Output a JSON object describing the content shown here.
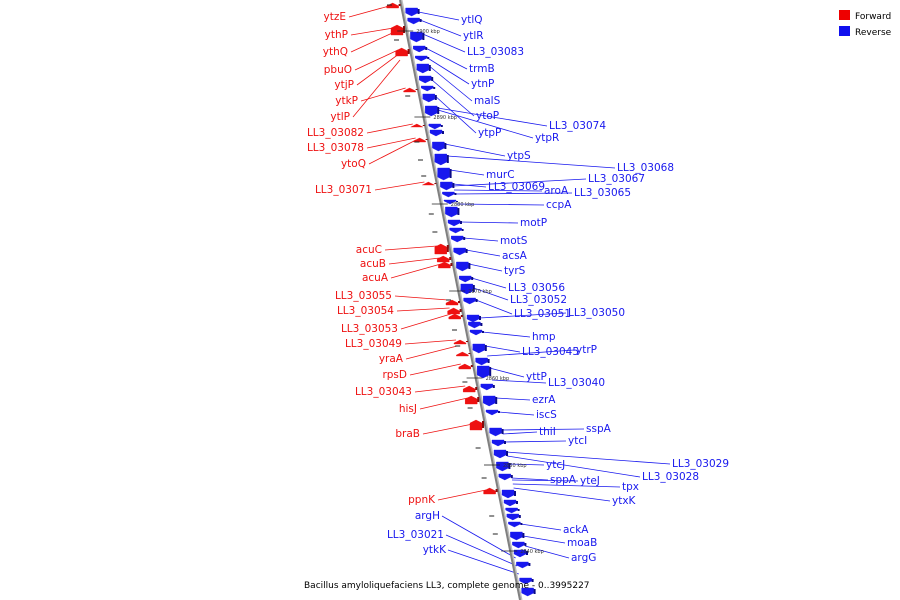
{
  "caption": "Bacillus amyloliquefaciens LL3, complete genome - 0..3995227",
  "legend": [
    {
      "label": "Forward",
      "color": "#ee0000"
    },
    {
      "label": "Reverse",
      "color": "#1010ee"
    }
  ],
  "colors": {
    "forward": "#ee1111",
    "reverse": "#1818ee",
    "axis": "#808080"
  },
  "ticks": [
    "2900 kbp",
    "2890 kbp",
    "2880 kbp",
    "2870 kbp",
    "2860 kbp",
    "2850 kbp",
    "2840 kbp"
  ],
  "genes_forward": [
    "ytzE",
    "ythP",
    "ythQ",
    "pbuO",
    "ytjP",
    "ytkP",
    "ytlP",
    "LL3_03082",
    "LL3_03078",
    "ytoQ",
    "LL3_03071",
    "acuC",
    "acuB",
    "acuA",
    "LL3_03055",
    "LL3_03054",
    "LL3_03053",
    "LL3_03049",
    "yraA",
    "rpsD",
    "LL3_03043",
    "hisJ",
    "braB",
    "ppnK"
  ],
  "genes_reverse": [
    "ytlQ",
    "ytlR",
    "LL3_03083",
    "trmB",
    "ytnP",
    "malS",
    "ytoP",
    "ytpP",
    "LL3_03074",
    "ytpR",
    "ytpS",
    "LL3_03068",
    "murC",
    "LL3_03067",
    "LL3_03069",
    "aroA",
    "LL3_03065",
    "ccpA",
    "motP",
    "motS",
    "acsA",
    "tyrS",
    "LL3_03056",
    "LL3_03052",
    "LL3_03051",
    "LL3_03050",
    "hmp",
    "LL3_03045",
    "ytrP",
    "yttP",
    "LL3_03040",
    "ezrA",
    "iscS",
    "sspA",
    "thiI",
    "ytcI",
    "ytcJ",
    "LL3_03029",
    "LL3_03028",
    "sppA",
    "yteJ",
    "tpx",
    "ytxK",
    "ackA",
    "moaB",
    "argG"
  ],
  "genes_reverse_left": [
    "argH",
    "LL3_03021",
    "ytkK"
  ]
}
